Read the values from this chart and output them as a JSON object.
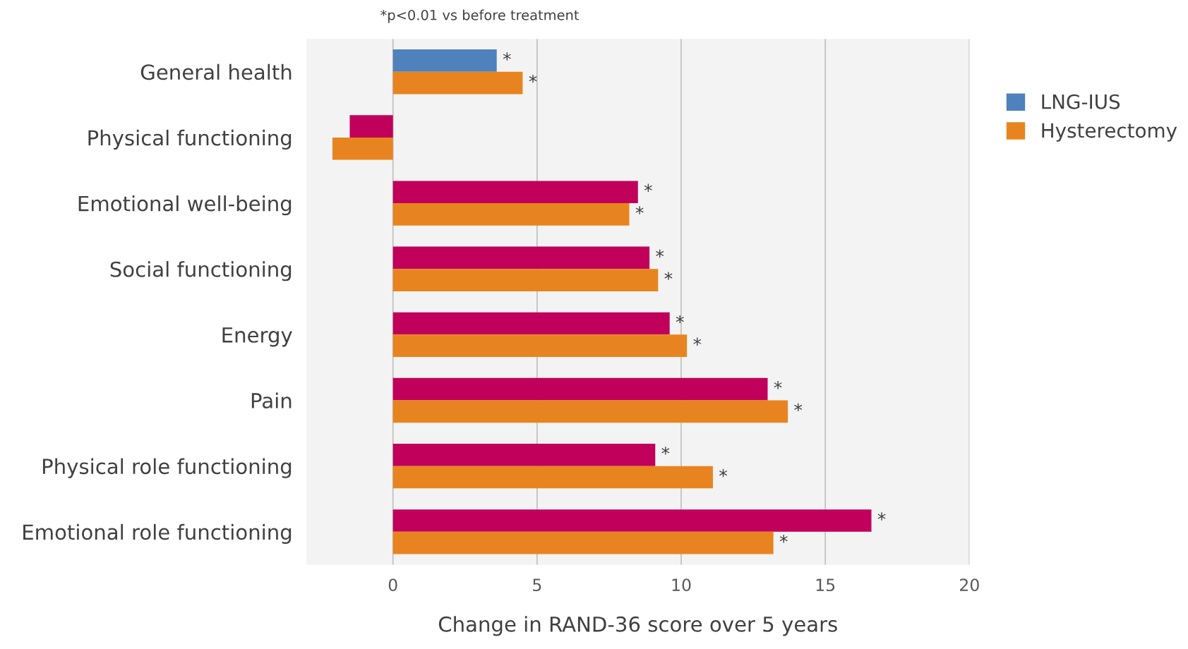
{
  "chart_data": {
    "type": "bar",
    "orientation": "horizontal",
    "categories": [
      "General health",
      "Physical functioning",
      "Emotional well-being",
      "Social functioning",
      "Energy",
      "Pain",
      "Physical role functioning",
      "Emotional role functioning"
    ],
    "series": [
      {
        "name": "LNG-IUS",
        "color": "#4f81bd",
        "colors": [
          "#4f81bd",
          "#c0005a",
          "#c0005a",
          "#c0005a",
          "#c0005a",
          "#c0005a",
          "#c0005a",
          "#c0005a"
        ],
        "values": [
          3.6,
          -1.5,
          8.5,
          8.9,
          9.6,
          13.0,
          9.1,
          16.6
        ],
        "value_labels": [
          "*",
          null,
          "*",
          "*",
          "*",
          "*",
          "*",
          "*"
        ]
      },
      {
        "name": "Hysterectomy",
        "color": "#e8841f",
        "values": [
          4.5,
          -2.1,
          8.2,
          9.2,
          10.2,
          13.7,
          11.1,
          13.2
        ],
        "value_labels": [
          "*",
          null,
          "*",
          "*",
          "*",
          "*",
          "*",
          "*"
        ]
      }
    ],
    "xlim": [
      -3,
      20
    ],
    "xticks": [
      0,
      5,
      10,
      15,
      20
    ],
    "xlabel": "Change in RAND-36 score over 5 years",
    "annotations": [
      "*p<0.01 vs before treatment"
    ],
    "grid": "x",
    "legend": "right"
  }
}
